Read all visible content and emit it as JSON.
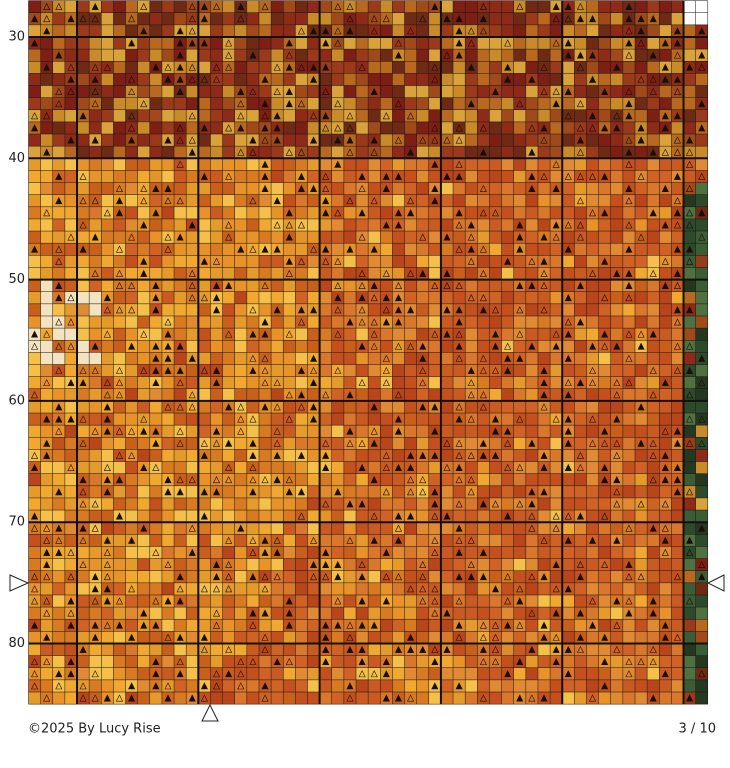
{
  "pattern": {
    "row_labels": [
      30,
      40,
      50,
      60,
      70,
      80
    ]
  },
  "footer": {
    "copyright": "©2025 By Lucy Rise",
    "page": "3 / 10"
  }
}
